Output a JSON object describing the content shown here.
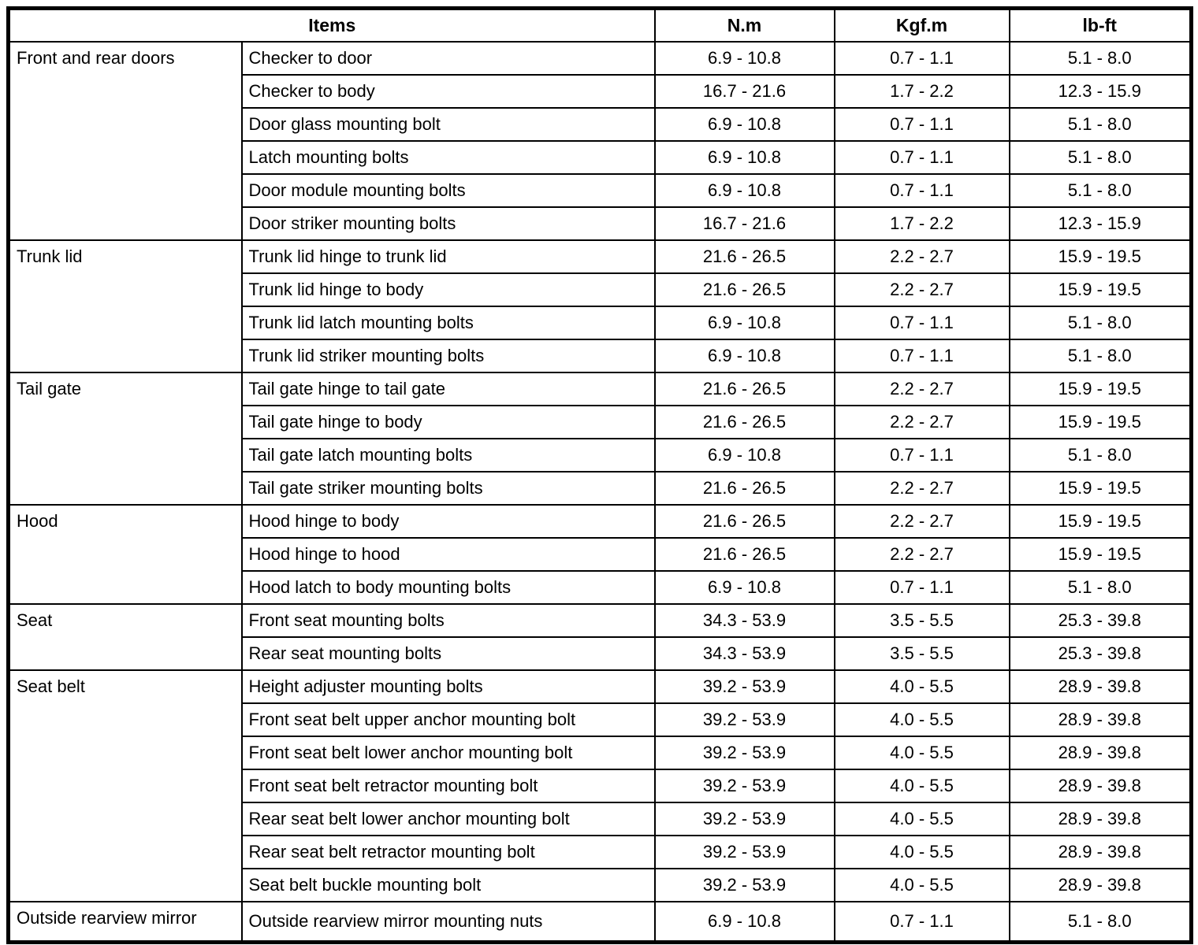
{
  "colors": {
    "border": "#000000",
    "background": "#ffffff",
    "text": "#000000"
  },
  "table": {
    "header": {
      "items_label": "Items",
      "nm_label": "N.m",
      "kgfm_label": "Kgf.m",
      "lbft_label": "lb-ft"
    },
    "groups": [
      {
        "category": "Front and rear doors",
        "rows": [
          {
            "item": "Checker to door",
            "nm": "6.9 - 10.8",
            "kgfm": "0.7 - 1.1",
            "lbft": "5.1 - 8.0"
          },
          {
            "item": "Checker to body",
            "nm": "16.7 - 21.6",
            "kgfm": "1.7 - 2.2",
            "lbft": "12.3 - 15.9"
          },
          {
            "item": "Door glass mounting bolt",
            "nm": "6.9 - 10.8",
            "kgfm": "0.7 - 1.1",
            "lbft": "5.1 - 8.0"
          },
          {
            "item": "Latch mounting bolts",
            "nm": "6.9 - 10.8",
            "kgfm": "0.7 - 1.1",
            "lbft": "5.1 - 8.0"
          },
          {
            "item": "Door module mounting bolts",
            "nm": "6.9 - 10.8",
            "kgfm": "0.7 - 1.1",
            "lbft": "5.1 - 8.0"
          },
          {
            "item": "Door striker mounting bolts",
            "nm": "16.7 - 21.6",
            "kgfm": "1.7 - 2.2",
            "lbft": "12.3 - 15.9"
          }
        ]
      },
      {
        "category": "Trunk lid",
        "rows": [
          {
            "item": "Trunk lid hinge to trunk lid",
            "nm": "21.6 - 26.5",
            "kgfm": "2.2 - 2.7",
            "lbft": "15.9 - 19.5"
          },
          {
            "item": "Trunk lid hinge to body",
            "nm": "21.6 - 26.5",
            "kgfm": "2.2 - 2.7",
            "lbft": "15.9 - 19.5"
          },
          {
            "item": "Trunk lid latch mounting bolts",
            "nm": "6.9 - 10.8",
            "kgfm": "0.7 - 1.1",
            "lbft": "5.1 - 8.0"
          },
          {
            "item": "Trunk lid striker mounting bolts",
            "nm": "6.9 - 10.8",
            "kgfm": "0.7 - 1.1",
            "lbft": "5.1 - 8.0"
          }
        ]
      },
      {
        "category": "Tail gate",
        "rows": [
          {
            "item": "Tail gate hinge to tail gate",
            "nm": "21.6 - 26.5",
            "kgfm": "2.2 - 2.7",
            "lbft": "15.9 - 19.5"
          },
          {
            "item": "Tail gate hinge to body",
            "nm": "21.6 - 26.5",
            "kgfm": "2.2 - 2.7",
            "lbft": "15.9 - 19.5"
          },
          {
            "item": "Tail gate latch mounting bolts",
            "nm": "6.9 - 10.8",
            "kgfm": "0.7 - 1.1",
            "lbft": "5.1 - 8.0"
          },
          {
            "item": "Tail gate striker mounting bolts",
            "nm": "21.6 - 26.5",
            "kgfm": "2.2 - 2.7",
            "lbft": "15.9 - 19.5"
          }
        ]
      },
      {
        "category": "Hood",
        "rows": [
          {
            "item": "Hood hinge to body",
            "nm": "21.6 - 26.5",
            "kgfm": "2.2 - 2.7",
            "lbft": "15.9 - 19.5"
          },
          {
            "item": "Hood hinge to hood",
            "nm": "21.6 - 26.5",
            "kgfm": "2.2 - 2.7",
            "lbft": "15.9 - 19.5"
          },
          {
            "item": "Hood latch to body mounting bolts",
            "nm": "6.9 - 10.8",
            "kgfm": "0.7 - 1.1",
            "lbft": "5.1 - 8.0"
          }
        ]
      },
      {
        "category": "Seat",
        "rows": [
          {
            "item": "Front seat mounting bolts",
            "nm": "34.3 - 53.9",
            "kgfm": "3.5 - 5.5",
            "lbft": "25.3 - 39.8"
          },
          {
            "item": "Rear seat mounting bolts",
            "nm": "34.3 - 53.9",
            "kgfm": "3.5 - 5.5",
            "lbft": "25.3 - 39.8"
          }
        ]
      },
      {
        "category": "Seat belt",
        "rows": [
          {
            "item": "Height adjuster mounting bolts",
            "nm": "39.2 - 53.9",
            "kgfm": "4.0 - 5.5",
            "lbft": "28.9 - 39.8"
          },
          {
            "item": "Front seat belt upper anchor mounting bolt",
            "nm": "39.2 - 53.9",
            "kgfm": "4.0 - 5.5",
            "lbft": "28.9 - 39.8"
          },
          {
            "item": "Front seat belt lower anchor mounting bolt",
            "nm": "39.2 - 53.9",
            "kgfm": "4.0 - 5.5",
            "lbft": "28.9 - 39.8"
          },
          {
            "item": "Front seat belt retractor mounting bolt",
            "nm": "39.2 - 53.9",
            "kgfm": "4.0 - 5.5",
            "lbft": "28.9 - 39.8"
          },
          {
            "item": "Rear seat belt lower anchor mounting bolt",
            "nm": "39.2 - 53.9",
            "kgfm": "4.0 - 5.5",
            "lbft": "28.9 - 39.8"
          },
          {
            "item": "Rear seat belt retractor mounting bolt",
            "nm": "39.2 - 53.9",
            "kgfm": "4.0 - 5.5",
            "lbft": "28.9 - 39.8"
          },
          {
            "item": "Seat belt buckle mounting bolt",
            "nm": "39.2 - 53.9",
            "kgfm": "4.0 - 5.5",
            "lbft": "28.9 - 39.8"
          }
        ]
      },
      {
        "category": "Outside rearview mirror",
        "rows": [
          {
            "item": "Outside rearview mirror mounting nuts",
            "nm": "6.9 - 10.8",
            "kgfm": "0.7 - 1.1",
            "lbft": "5.1 - 8.0"
          }
        ]
      }
    ]
  }
}
